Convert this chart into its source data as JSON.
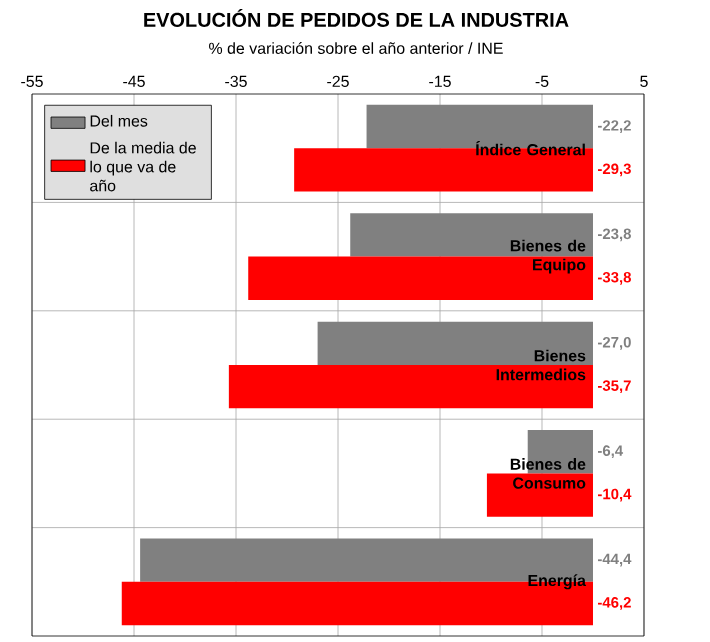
{
  "chart_data": {
    "type": "bar",
    "orientation": "horizontal",
    "title": "EVOLUCIÓN DE PEDIDOS DE LA INDUSTRIA",
    "subtitle": "% de variación sobre el año anterior / INE",
    "categories": [
      "Índice General",
      "Bienes de Equipo",
      "Bienes Intermedios",
      "Bienes de Consumo",
      "Energía"
    ],
    "series": [
      {
        "name": "Del mes",
        "color": "#808080",
        "values": [
          -22.2,
          -23.8,
          -27.0,
          -6.4,
          -44.4
        ],
        "value_labels": [
          "-22,2",
          "-23,8",
          "-27,0",
          "-6,4",
          "-44,4"
        ]
      },
      {
        "name": "De la media de lo que va de año",
        "color": "#ff0000",
        "values": [
          -29.3,
          -33.8,
          -35.7,
          -10.4,
          -46.2
        ],
        "value_labels": [
          "-29,3",
          "-33,8",
          "-35,7",
          "-10,4",
          "-46,2"
        ]
      }
    ],
    "xlim": [
      -55,
      5
    ],
    "xticks": [
      -55,
      -45,
      -35,
      -25,
      -15,
      -5,
      5
    ],
    "grid": true,
    "legend": "top left"
  }
}
